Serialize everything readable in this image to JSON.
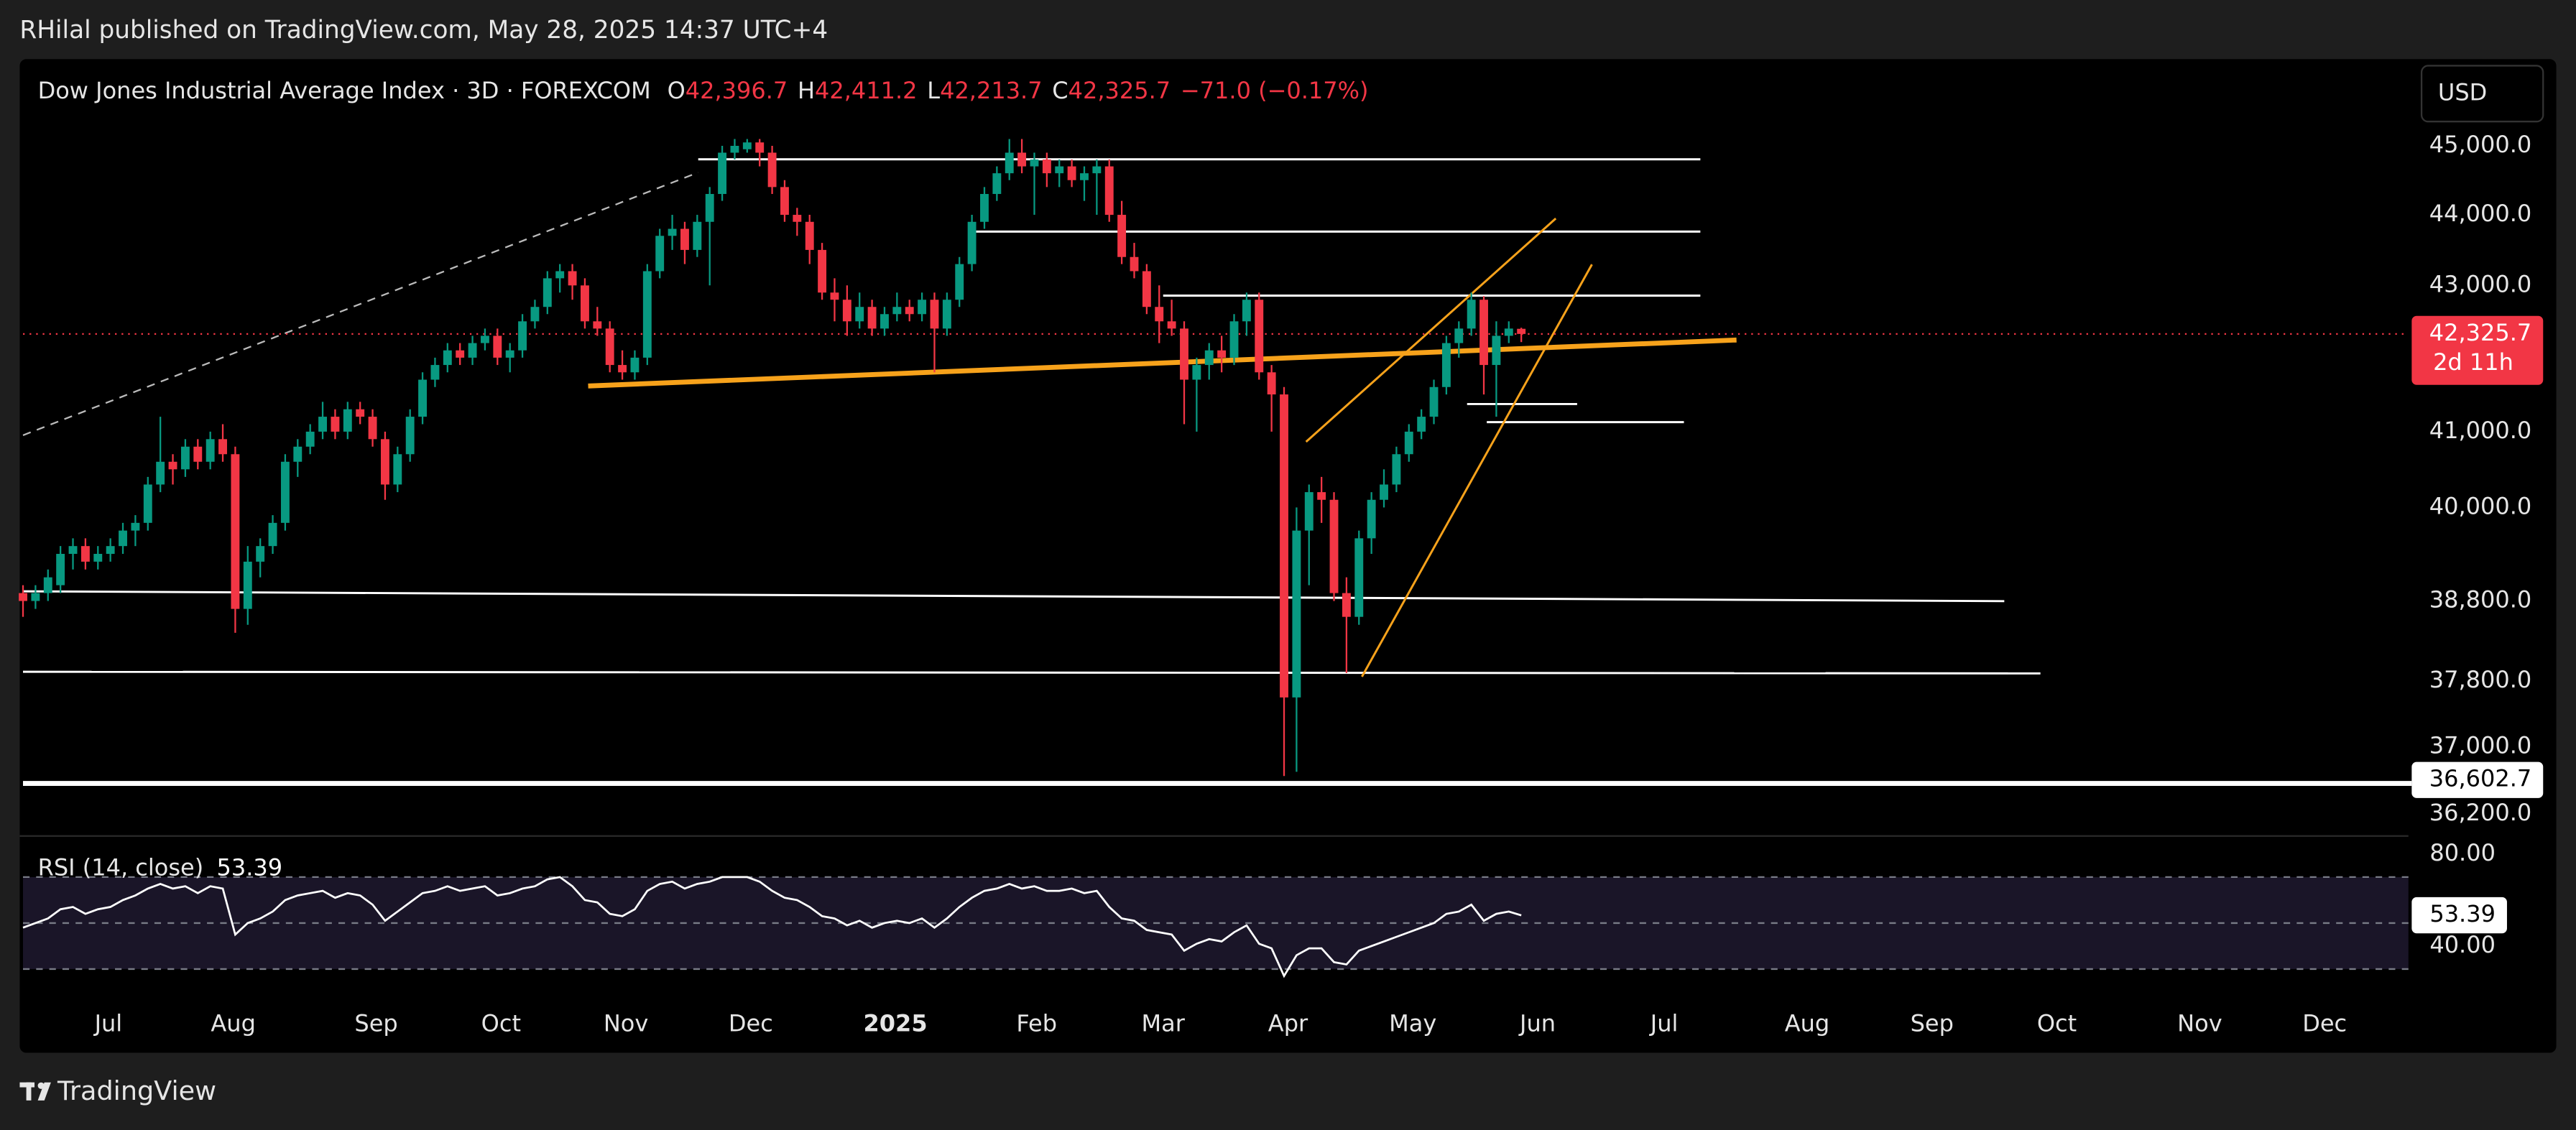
{
  "header": {
    "published": "RHilal published on TradingView.com, May 28, 2025 14:37 UTC+4"
  },
  "footer": {
    "brand": "TradingView"
  },
  "chart_data": [
    {
      "type": "candlestick",
      "title": "Dow Jones Industrial Average Index · 3D · FOREXCOM",
      "ohlc": [
        {
          "key": "O",
          "value": "42,396.7"
        },
        {
          "key": "H",
          "value": "42,411.2"
        },
        {
          "key": "L",
          "value": "42,213.7"
        },
        {
          "key": "C",
          "value": "42,325.7"
        }
      ],
      "change": "−71.0 (−0.17%)",
      "currency": "USD",
      "log_scale": true,
      "up_color": "#089981",
      "down_color": "#f23645",
      "ylim": [
        35960,
        46190
      ],
      "yticks": [
        {
          "value": 45000,
          "label": "45,000.0"
        },
        {
          "value": 44000,
          "label": "44,000.0"
        },
        {
          "value": 43000,
          "label": "43,000.0"
        },
        {
          "value": 41000,
          "label": "41,000.0"
        },
        {
          "value": 40000,
          "label": "40,000.0"
        },
        {
          "value": 38800,
          "label": "38,800.0"
        },
        {
          "value": 37800,
          "label": "37,800.0"
        },
        {
          "value": 37000,
          "label": "37,000.0"
        },
        {
          "value": 36200,
          "label": "36,200.0"
        }
      ],
      "last_price": {
        "value": 42325.7,
        "label": "42,325.7",
        "countdown": "2d 11h"
      },
      "level_label": {
        "value": 36602.7,
        "label": "36,602.7"
      },
      "time_labels": [
        "Jul",
        "Aug",
        "Sep",
        "Oct",
        "Nov",
        "Dec",
        "2025",
        "Feb",
        "Mar",
        "Apr",
        "May",
        "Jun",
        "Jul",
        "Aug",
        "Sep",
        "Oct",
        "Nov",
        "Dec"
      ],
      "candles": [
        [
          38900,
          39000,
          38600,
          38800
        ],
        [
          38800,
          39000,
          38700,
          38900
        ],
        [
          38900,
          39200,
          38800,
          39100
        ],
        [
          39000,
          39500,
          38900,
          39400
        ],
        [
          39400,
          39600,
          39200,
          39500
        ],
        [
          39500,
          39600,
          39200,
          39300
        ],
        [
          39300,
          39500,
          39200,
          39400
        ],
        [
          39400,
          39600,
          39300,
          39500
        ],
        [
          39500,
          39800,
          39400,
          39700
        ],
        [
          39700,
          39900,
          39500,
          39800
        ],
        [
          39800,
          40400,
          39700,
          40300
        ],
        [
          40300,
          41200,
          40200,
          40600
        ],
        [
          40600,
          40700,
          40300,
          40500
        ],
        [
          40500,
          40900,
          40400,
          40800
        ],
        [
          40800,
          40900,
          40500,
          40600
        ],
        [
          40600,
          41000,
          40500,
          40900
        ],
        [
          40900,
          41100,
          40600,
          40700
        ],
        [
          40700,
          40800,
          38400,
          38700
        ],
        [
          38700,
          39500,
          38500,
          39300
        ],
        [
          39300,
          39600,
          39100,
          39500
        ],
        [
          39500,
          39900,
          39400,
          39800
        ],
        [
          39800,
          40700,
          39700,
          40600
        ],
        [
          40600,
          40900,
          40400,
          40800
        ],
        [
          40800,
          41100,
          40700,
          41000
        ],
        [
          41000,
          41400,
          40900,
          41200
        ],
        [
          41200,
          41300,
          40900,
          41000
        ],
        [
          41000,
          41400,
          40900,
          41300
        ],
        [
          41300,
          41400,
          41100,
          41200
        ],
        [
          41200,
          41300,
          40800,
          40900
        ],
        [
          40900,
          41000,
          40100,
          40300
        ],
        [
          40300,
          40800,
          40200,
          40700
        ],
        [
          40700,
          41300,
          40600,
          41200
        ],
        [
          41200,
          41800,
          41100,
          41700
        ],
        [
          41700,
          42000,
          41600,
          41900
        ],
        [
          41900,
          42200,
          41800,
          42100
        ],
        [
          42100,
          42200,
          41900,
          42000
        ],
        [
          42000,
          42300,
          41900,
          42200
        ],
        [
          42200,
          42400,
          42100,
          42300
        ],
        [
          42300,
          42400,
          41900,
          42000
        ],
        [
          42000,
          42200,
          41800,
          42100
        ],
        [
          42100,
          42600,
          42000,
          42500
        ],
        [
          42500,
          42800,
          42400,
          42700
        ],
        [
          42700,
          43200,
          42600,
          43100
        ],
        [
          43100,
          43300,
          42900,
          43200
        ],
        [
          43200,
          43300,
          42800,
          43000
        ],
        [
          43000,
          43100,
          42400,
          42500
        ],
        [
          42500,
          42700,
          42300,
          42400
        ],
        [
          42400,
          42500,
          41800,
          41900
        ],
        [
          41900,
          42100,
          41700,
          41800
        ],
        [
          41800,
          42100,
          41700,
          42000
        ],
        [
          42000,
          43300,
          41900,
          43200
        ],
        [
          43200,
          43800,
          43100,
          43700
        ],
        [
          43700,
          44000,
          43500,
          43800
        ],
        [
          43800,
          43900,
          43300,
          43500
        ],
        [
          43500,
          44000,
          43400,
          43900
        ],
        [
          43900,
          44400,
          43000,
          44300
        ],
        [
          44300,
          45000,
          44200,
          44900
        ],
        [
          44900,
          45100,
          44800,
          45000
        ],
        [
          44950,
          45100,
          44900,
          45050
        ],
        [
          45050,
          45100,
          44700,
          44900
        ],
        [
          44900,
          45000,
          44300,
          44400
        ],
        [
          44400,
          44500,
          43900,
          44000
        ],
        [
          44000,
          44100,
          43700,
          43900
        ],
        [
          43900,
          44000,
          43300,
          43500
        ],
        [
          43500,
          43600,
          42800,
          42900
        ],
        [
          42900,
          43100,
          42500,
          42800
        ],
        [
          42800,
          43000,
          42300,
          42500
        ],
        [
          42500,
          42900,
          42400,
          42700
        ],
        [
          42700,
          42800,
          42300,
          42400
        ],
        [
          42400,
          42700,
          42300,
          42600
        ],
        [
          42600,
          42900,
          42500,
          42700
        ],
        [
          42700,
          42800,
          42500,
          42600
        ],
        [
          42600,
          42900,
          42500,
          42800
        ],
        [
          42800,
          42900,
          41800,
          42400
        ],
        [
          42400,
          42900,
          42300,
          42800
        ],
        [
          42800,
          43400,
          42700,
          43300
        ],
        [
          43300,
          44000,
          43200,
          43900
        ],
        [
          43900,
          44400,
          43800,
          44300
        ],
        [
          44300,
          44700,
          44200,
          44600
        ],
        [
          44600,
          45100,
          44500,
          44900
        ],
        [
          44900,
          45100,
          44600,
          44700
        ],
        [
          44700,
          44900,
          44000,
          44800
        ],
        [
          44800,
          44900,
          44400,
          44600
        ],
        [
          44600,
          44800,
          44400,
          44700
        ],
        [
          44700,
          44800,
          44400,
          44500
        ],
        [
          44500,
          44700,
          44200,
          44600
        ],
        [
          44600,
          44800,
          44000,
          44700
        ],
        [
          44700,
          44800,
          43900,
          44000
        ],
        [
          44000,
          44200,
          43300,
          43400
        ],
        [
          43400,
          43600,
          43100,
          43200
        ],
        [
          43200,
          43300,
          42600,
          42700
        ],
        [
          42700,
          43000,
          42200,
          42500
        ],
        [
          42500,
          42800,
          42300,
          42400
        ],
        [
          42400,
          42500,
          41100,
          41700
        ],
        [
          41700,
          42000,
          41000,
          41900
        ],
        [
          41900,
          42200,
          41700,
          42100
        ],
        [
          42100,
          42300,
          41800,
          42000
        ],
        [
          42000,
          42600,
          41900,
          42500
        ],
        [
          42500,
          42900,
          42300,
          42800
        ],
        [
          42800,
          42900,
          41700,
          41800
        ],
        [
          41800,
          41900,
          41000,
          41500
        ],
        [
          41500,
          41600,
          36650,
          37600
        ],
        [
          37600,
          40000,
          36700,
          39700
        ],
        [
          39700,
          40300,
          39000,
          40200
        ],
        [
          40200,
          40400,
          39800,
          40100
        ],
        [
          40100,
          40200,
          38800,
          38900
        ],
        [
          38900,
          39100,
          37900,
          38600
        ],
        [
          38600,
          39700,
          38500,
          39600
        ],
        [
          39600,
          40200,
          39400,
          40100
        ],
        [
          40100,
          40500,
          40000,
          40300
        ],
        [
          40300,
          40800,
          40200,
          40700
        ],
        [
          40700,
          41100,
          40600,
          41000
        ],
        [
          41000,
          41300,
          40900,
          41200
        ],
        [
          41200,
          41700,
          41100,
          41600
        ],
        [
          41600,
          42300,
          41500,
          42200
        ],
        [
          42200,
          42500,
          42000,
          42400
        ],
        [
          42400,
          42900,
          42300,
          42800
        ],
        [
          42800,
          42850,
          41500,
          41900
        ],
        [
          41900,
          42500,
          41200,
          42300
        ],
        [
          42300,
          42500,
          42200,
          42400
        ],
        [
          42396.7,
          42411.2,
          42213.7,
          42325.7
        ]
      ]
    },
    {
      "type": "line",
      "title": "RSI (14, close)",
      "color": "#ffffff",
      "band_color": "#1a1528",
      "ylim": [
        21,
        87
      ],
      "yticks": [
        {
          "value": 80,
          "label": "80.00"
        },
        {
          "value": 40,
          "label": "40.00"
        }
      ],
      "levels": [
        70,
        50,
        30
      ],
      "values": [
        48,
        50,
        52,
        56,
        57,
        54,
        56,
        57,
        60,
        62,
        65,
        67,
        65,
        66,
        63,
        66,
        65,
        45,
        50,
        52,
        55,
        60,
        62,
        63,
        64,
        61,
        63,
        62,
        58,
        51,
        55,
        59,
        63,
        64,
        66,
        64,
        65,
        66,
        62,
        63,
        65,
        66,
        69,
        70,
        66,
        60,
        59,
        54,
        53,
        56,
        64,
        67,
        68,
        65,
        67,
        68,
        70,
        70,
        70,
        68,
        64,
        61,
        60,
        57,
        53,
        52,
        49,
        51,
        48,
        50,
        51,
        50,
        52,
        48,
        52,
        57,
        61,
        64,
        65,
        67,
        65,
        66,
        64,
        64,
        65,
        63,
        64,
        57,
        52,
        51,
        47,
        46,
        45,
        38,
        41,
        43,
        42,
        46,
        49,
        41,
        39,
        27,
        36,
        39,
        39,
        33,
        32,
        38,
        40,
        42,
        44,
        46,
        48,
        50,
        54,
        55,
        58,
        51,
        54,
        55,
        53.39
      ]
    }
  ]
}
